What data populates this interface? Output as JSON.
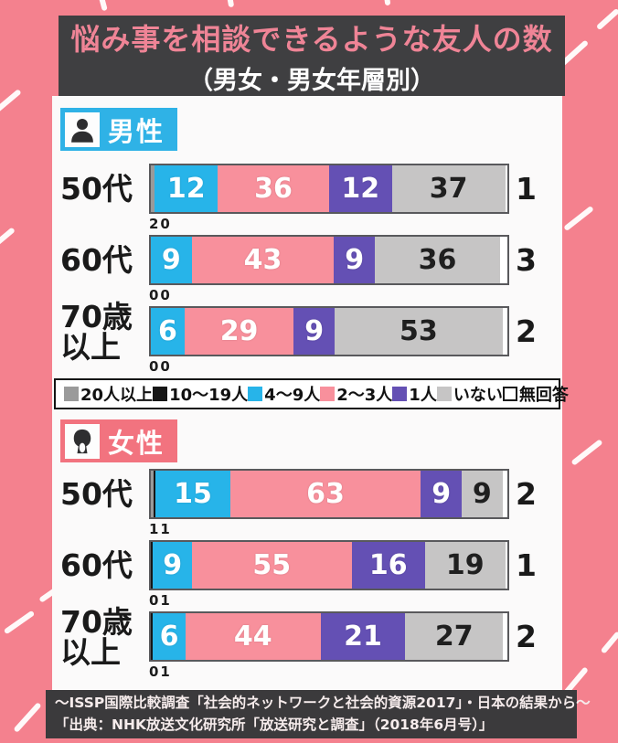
{
  "header": {
    "title": "悩み事を相談できるような友人の数",
    "subtitle": "（男女・男女年層別）"
  },
  "colors": {
    "background_pink": "#f4818e",
    "title_box": "#3f3f41",
    "title_text": "#ef8496",
    "male_badge": "#2fb2e6",
    "female_badge": "#f2737f"
  },
  "chart_data": {
    "type": "bar",
    "stacked": true,
    "orientation": "horizontal",
    "unit": "%",
    "xlim": [
      0,
      100
    ],
    "grid": false,
    "legend_position": "middle-band",
    "legend": [
      "20人以上",
      "10～19人",
      "4～9人",
      "2～3人",
      "1人",
      "いない",
      "無回答"
    ],
    "keys": [
      "20plus",
      "10to19",
      "4to9",
      "2to3",
      "one",
      "none",
      "noanswer"
    ],
    "colors": [
      "#9a9a9a",
      "#161616",
      "#27b4e9",
      "#f8909c",
      "#6450b4",
      "#c6c5c5",
      "#ffffff"
    ],
    "groups": [
      {
        "label": "男性",
        "badge_color": "#2fb2e6",
        "icon": "male-icon",
        "rows": [
          {
            "age": "50代",
            "values": [
              2,
              0,
              12,
              36,
              12,
              37,
              1
            ],
            "sub": "20",
            "outside": "1"
          },
          {
            "age": "60代",
            "values": [
              0,
              0,
              9,
              43,
              9,
              36,
              3
            ],
            "sub": "00",
            "outside": "3"
          },
          {
            "age": "70歳\n以上",
            "values": [
              0,
              0,
              6,
              29,
              9,
              53,
              2
            ],
            "sub": "00",
            "outside": "2"
          }
        ]
      },
      {
        "label": "女性",
        "badge_color": "#f2737f",
        "icon": "female-icon",
        "rows": [
          {
            "age": "50代",
            "values": [
              1,
              1,
              15,
              63,
              9,
              9,
              2
            ],
            "sub": "11",
            "outside": "2"
          },
          {
            "age": "60代",
            "values": [
              0,
              1,
              9,
              55,
              16,
              19,
              1
            ],
            "sub": "01",
            "outside": "1"
          },
          {
            "age": "70歳\n以上",
            "values": [
              0,
              1,
              6,
              44,
              21,
              27,
              2
            ],
            "sub": "01",
            "outside": "2"
          }
        ]
      }
    ],
    "title": "悩み事を相談できるような友人の数（男女・男女年層別）"
  },
  "footer": {
    "line1": "～ISSP国際比較調査「社会的ネットワークと社会的資源2017」・日本の結果から～",
    "line2": "「出典：NHK放送文化研究所「放送研究と調査」（2018年6月号）」"
  }
}
